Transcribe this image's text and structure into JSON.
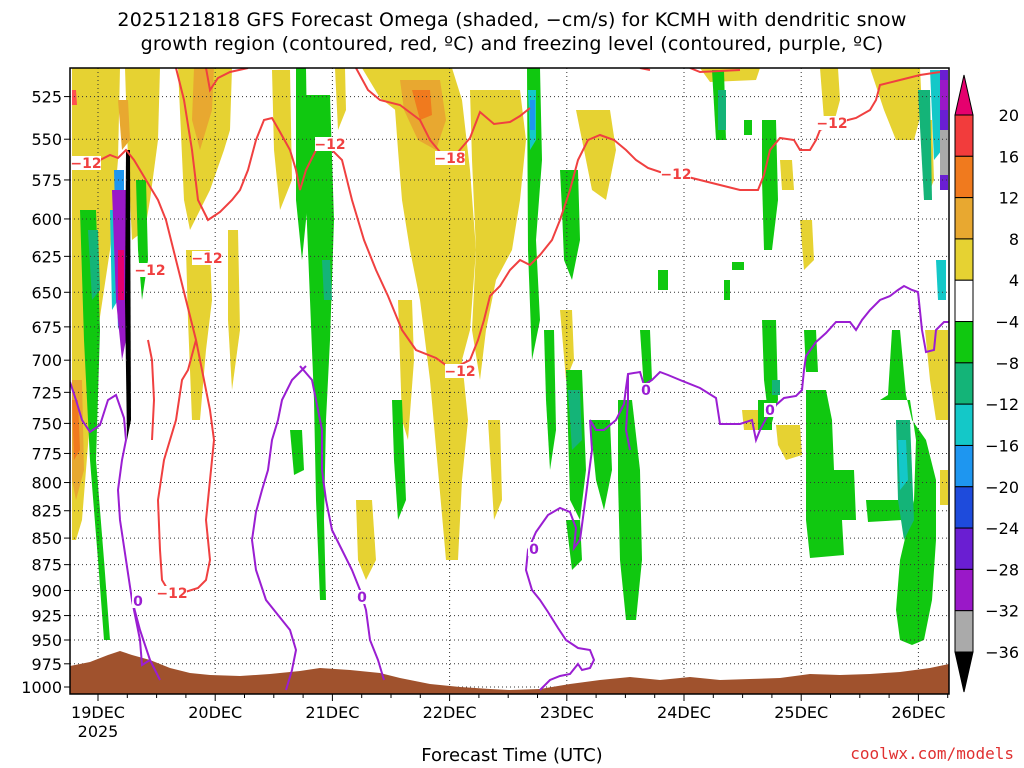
{
  "title_line1": "2025121818 GFS Forecast Omega (shaded, −cm/s) for KCMH with dendritic snow",
  "title_line2": "growth region (contoured, red, ºC) and freezing level (contoured, purple, ºC)",
  "xlabel": "Forecast Time (UTC)",
  "credit": "coolwx.com/models",
  "chart_data": {
    "type": "heatmap",
    "x_ticks": [
      "19DEC",
      "20DEC",
      "21DEC",
      "22DEC",
      "23DEC",
      "24DEC",
      "25DEC",
      "26DEC"
    ],
    "x_year_label": "2025",
    "y_ticks": [
      525,
      550,
      575,
      600,
      625,
      650,
      675,
      700,
      725,
      750,
      775,
      800,
      825,
      850,
      875,
      900,
      925,
      950,
      975,
      1000
    ],
    "ylim": [
      1000,
      505
    ],
    "y_scale": "log-pressure",
    "grid": true,
    "colorbar": {
      "labels": [
        "20",
        "16",
        "12",
        "8",
        "4",
        "−4",
        "−8",
        "−12",
        "−16",
        "−20",
        "−24",
        "−28",
        "−32",
        "−36"
      ],
      "colors": [
        "#e5006e",
        "#f23c3c",
        "#f07a1e",
        "#e8a830",
        "#e6d232",
        "#ffffff",
        "#10c810",
        "#14b478",
        "#14c8c8",
        "#1e96f0",
        "#1e4bdc",
        "#6a1ed2",
        "#9a18c8",
        "#aaaaaa",
        "#000000"
      ]
    },
    "contour_labels": [
      {
        "text": "−12",
        "color": "red"
      },
      {
        "text": "−12",
        "color": "red"
      },
      {
        "text": "−12",
        "color": "red"
      },
      {
        "text": "−12",
        "color": "red"
      },
      {
        "text": "−12",
        "color": "red"
      },
      {
        "text": "−18",
        "color": "red"
      },
      {
        "text": "−12",
        "color": "red"
      },
      {
        "text": "−12",
        "color": "red"
      },
      {
        "text": "−12",
        "color": "red"
      },
      {
        "text": "0",
        "color": "purple"
      },
      {
        "text": "0",
        "color": "purple"
      },
      {
        "text": "0",
        "color": "purple"
      },
      {
        "text": "0",
        "color": "purple"
      },
      {
        "text": "0",
        "color": "purple"
      }
    ]
  }
}
